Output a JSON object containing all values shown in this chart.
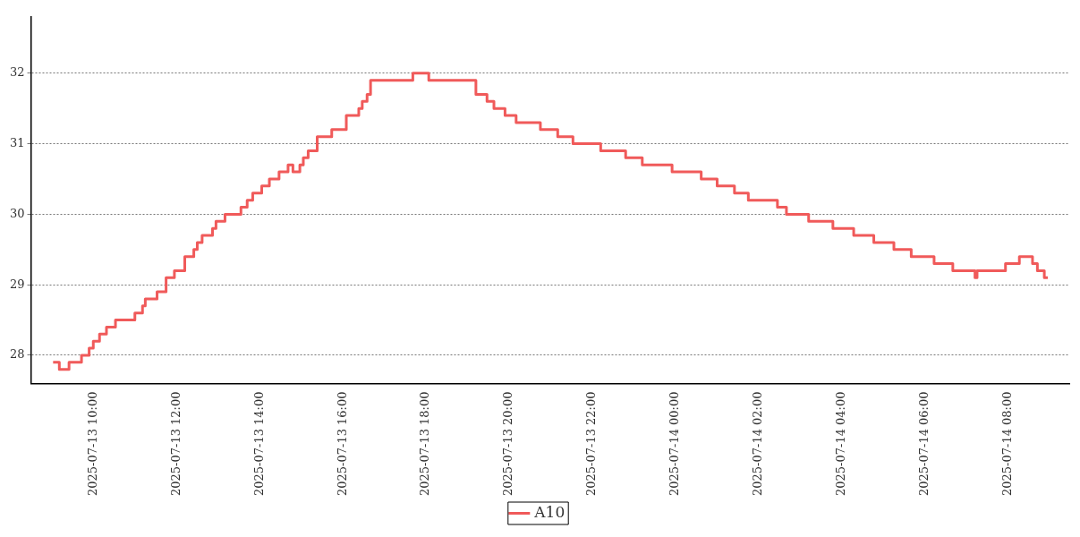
{
  "chart_data": {
    "type": "step",
    "xlim": [
      "2025-07-13T08:30",
      "2025-07-14T09:28"
    ],
    "ylim": [
      27.6,
      32.8
    ],
    "xticks": [
      {
        "value": "2025-07-13T10:00",
        "label": "2025-07-13 10:00"
      },
      {
        "value": "2025-07-13T12:00",
        "label": "2025-07-13 12:00"
      },
      {
        "value": "2025-07-13T14:00",
        "label": "2025-07-13 14:00"
      },
      {
        "value": "2025-07-13T16:00",
        "label": "2025-07-13 16:00"
      },
      {
        "value": "2025-07-13T18:00",
        "label": "2025-07-13 18:00"
      },
      {
        "value": "2025-07-13T20:00",
        "label": "2025-07-13 20:00"
      },
      {
        "value": "2025-07-13T22:00",
        "label": "2025-07-13 22:00"
      },
      {
        "value": "2025-07-14T00:00",
        "label": "2025-07-14 00:00"
      },
      {
        "value": "2025-07-14T02:00",
        "label": "2025-07-14 02:00"
      },
      {
        "value": "2025-07-14T04:00",
        "label": "2025-07-14 04:00"
      },
      {
        "value": "2025-07-14T06:00",
        "label": "2025-07-14 06:00"
      },
      {
        "value": "2025-07-14T08:00",
        "label": "2025-07-14 08:00"
      }
    ],
    "yticks": [
      28,
      29,
      30,
      31,
      32
    ],
    "grid": "y",
    "legend": "bottom",
    "marker": "none",
    "line_style": "solid",
    "series": [
      {
        "name": "A10",
        "color": "#f05a5a",
        "x": [
          "2025-07-13T09:02",
          "2025-07-13T09:11",
          "2025-07-13T09:25",
          "2025-07-13T09:43",
          "2025-07-13T09:54",
          "2025-07-13T10:00",
          "2025-07-13T10:09",
          "2025-07-13T10:19",
          "2025-07-13T10:32",
          "2025-07-13T11:00",
          "2025-07-13T11:11",
          "2025-07-13T11:15",
          "2025-07-13T11:32",
          "2025-07-13T11:45",
          "2025-07-13T11:57",
          "2025-07-13T12:12",
          "2025-07-13T12:25",
          "2025-07-13T12:30",
          "2025-07-13T12:37",
          "2025-07-13T12:52",
          "2025-07-13T12:57",
          "2025-07-13T13:10",
          "2025-07-13T13:33",
          "2025-07-13T13:42",
          "2025-07-13T13:50",
          "2025-07-13T14:03",
          "2025-07-13T14:14",
          "2025-07-13T14:28",
          "2025-07-13T14:41",
          "2025-07-13T14:48",
          "2025-07-13T14:58",
          "2025-07-13T15:03",
          "2025-07-13T15:10",
          "2025-07-13T15:23",
          "2025-07-13T15:44",
          "2025-07-13T16:05",
          "2025-07-13T16:23",
          "2025-07-13T16:28",
          "2025-07-13T16:35",
          "2025-07-13T16:40",
          "2025-07-13T17:41",
          "2025-07-13T18:04",
          "2025-07-13T19:12",
          "2025-07-13T19:28",
          "2025-07-13T19:38",
          "2025-07-13T19:54",
          "2025-07-13T20:10",
          "2025-07-13T20:45",
          "2025-07-13T21:10",
          "2025-07-13T21:32",
          "2025-07-13T22:12",
          "2025-07-13T22:48",
          "2025-07-13T23:12",
          "2025-07-13T23:55",
          "2025-07-14T00:37",
          "2025-07-14T01:00",
          "2025-07-14T01:25",
          "2025-07-14T01:45",
          "2025-07-14T02:27",
          "2025-07-14T02:40",
          "2025-07-14T03:12",
          "2025-07-14T03:47",
          "2025-07-14T04:17",
          "2025-07-14T04:46",
          "2025-07-14T05:15",
          "2025-07-14T05:40",
          "2025-07-14T06:13",
          "2025-07-14T06:40",
          "2025-07-14T07:12",
          "2025-07-14T07:15",
          "2025-07-14T07:56",
          "2025-07-14T08:16",
          "2025-07-14T08:35",
          "2025-07-14T08:42",
          "2025-07-14T08:52",
          "2025-07-14T08:57"
        ],
        "values": [
          27.9,
          27.8,
          27.9,
          28.0,
          28.1,
          28.2,
          28.3,
          28.4,
          28.5,
          28.6,
          28.7,
          28.8,
          28.9,
          29.1,
          29.2,
          29.4,
          29.5,
          29.6,
          29.7,
          29.8,
          29.9,
          30.0,
          30.1,
          30.2,
          30.3,
          30.4,
          30.5,
          30.6,
          30.7,
          30.6,
          30.7,
          30.8,
          30.9,
          31.1,
          31.2,
          31.4,
          31.5,
          31.6,
          31.7,
          31.9,
          32.0,
          31.9,
          31.7,
          31.6,
          31.5,
          31.4,
          31.3,
          31.2,
          31.1,
          31.0,
          30.9,
          30.8,
          30.7,
          30.6,
          30.5,
          30.4,
          30.3,
          30.2,
          30.1,
          30.0,
          29.9,
          29.8,
          29.7,
          29.6,
          29.5,
          29.4,
          29.3,
          29.2,
          29.1,
          29.2,
          29.3,
          29.4,
          29.3,
          29.2,
          29.1,
          29.1
        ]
      }
    ]
  }
}
